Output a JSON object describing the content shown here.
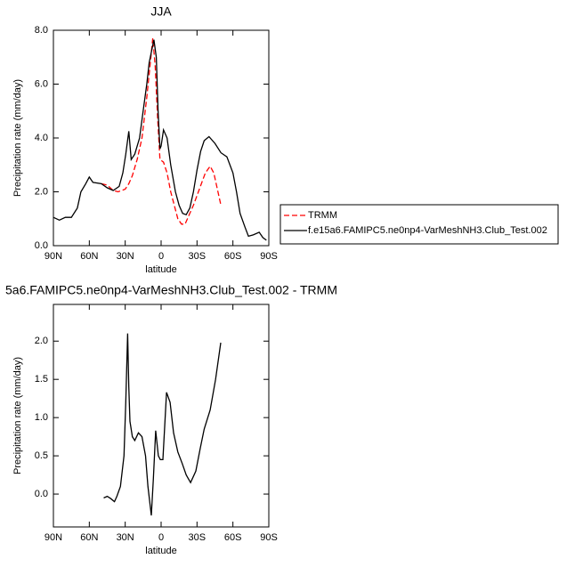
{
  "chart_data": [
    {
      "type": "line",
      "title": "JJA",
      "xlabel": "latitude",
      "ylabel": "Precipitation rate (mm/day)",
      "xlim": [
        90,
        -90
      ],
      "xticks": [
        {
          "value": 90,
          "label": "90N"
        },
        {
          "value": 60,
          "label": "60N"
        },
        {
          "value": 30,
          "label": "30N"
        },
        0,
        {
          "value": -30,
          "label": "30S"
        },
        {
          "value": -60,
          "label": "60S"
        },
        {
          "value": -90,
          "label": "90S"
        }
      ],
      "ylim": [
        0,
        8
      ],
      "yticks": [
        {
          "value": 0,
          "label": "0.0"
        },
        {
          "value": 2,
          "label": "2.0"
        },
        {
          "value": 4,
          "label": "4.0"
        },
        {
          "value": 6,
          "label": "6.0"
        },
        {
          "value": 8,
          "label": "8.0"
        }
      ],
      "legend": "right",
      "series": [
        {
          "name": "TRMM",
          "color": "#ff0000",
          "dash": "dashed",
          "x": [
            50,
            45,
            40,
            36,
            33,
            30,
            27,
            24,
            20,
            16,
            12,
            9,
            7,
            5,
            3,
            1,
            -2,
            -5,
            -8,
            -11,
            -14,
            -17,
            -20,
            -23,
            -27,
            -32,
            -37,
            -41,
            -44,
            -47,
            -50
          ],
          "values": [
            2.3,
            2.25,
            2.05,
            2.0,
            2.05,
            2.1,
            2.3,
            2.6,
            3.2,
            4.0,
            5.5,
            6.8,
            7.7,
            6.7,
            4.8,
            3.2,
            3.1,
            2.7,
            2.0,
            1.5,
            1.0,
            0.8,
            0.8,
            1.1,
            1.5,
            2.1,
            2.7,
            2.95,
            2.7,
            2.1,
            1.5
          ]
        },
        {
          "name": "f.e15a6.FAMIPC5.ne0np4-VarMeshNH3.Club_Test.002",
          "color": "#000000",
          "dash": "solid",
          "x": [
            90,
            85,
            80,
            75,
            70,
            67,
            63,
            60,
            57,
            50,
            45,
            40,
            35,
            32,
            29.5,
            27,
            25,
            22,
            18,
            15,
            12,
            10,
            6,
            4,
            2.5,
            1,
            0,
            -2,
            -5,
            -8,
            -12,
            -15,
            -18,
            -21,
            -24,
            -27,
            -30,
            -33,
            -36,
            -40,
            -45,
            -50,
            -55,
            -60,
            -63,
            -66,
            -70,
            -73,
            -77,
            -82,
            -85,
            -88
          ],
          "values": [
            1.05,
            0.95,
            1.05,
            1.05,
            1.4,
            2.0,
            2.3,
            2.55,
            2.35,
            2.3,
            2.15,
            2.05,
            2.2,
            2.7,
            3.4,
            4.25,
            3.2,
            3.4,
            4.0,
            5.0,
            6.0,
            6.8,
            7.65,
            7.0,
            5.0,
            3.6,
            3.7,
            4.3,
            4.0,
            3.0,
            2.0,
            1.5,
            1.2,
            1.15,
            1.4,
            2.0,
            2.8,
            3.5,
            3.9,
            4.05,
            3.8,
            3.45,
            3.3,
            2.7,
            2.0,
            1.2,
            0.7,
            0.35,
            0.4,
            0.5,
            0.3,
            0.2
          ]
        }
      ]
    },
    {
      "type": "line",
      "title": "5a6.FAMIPC5.ne0np4-VarMeshNH3.Club_Test.002 - TRMM",
      "xlabel": "latitude",
      "ylabel": "Precipitation rate (mm/day)",
      "xlim": [
        90,
        -90
      ],
      "xticks": [
        {
          "value": 90,
          "label": "90N"
        },
        {
          "value": 60,
          "label": "60N"
        },
        {
          "value": 30,
          "label": "30N"
        },
        0,
        {
          "value": -30,
          "label": "30S"
        },
        {
          "value": -60,
          "label": "60S"
        },
        {
          "value": -90,
          "label": "90S"
        }
      ],
      "ylim": [
        -0.43,
        2.48
      ],
      "yticks": [
        {
          "value": 0,
          "label": "0.0"
        },
        0.5,
        {
          "value": 1,
          "label": "1.0"
        },
        1.5,
        {
          "value": 2,
          "label": "2.0"
        }
      ],
      "series": [
        {
          "color": "#000000",
          "dash": "solid",
          "x": [
            48,
            45,
            42,
            39,
            37,
            34,
            31,
            29.5,
            28,
            27,
            26,
            24,
            22,
            19,
            16,
            13,
            11,
            8.2,
            6.5,
            4.5,
            2.3,
            0.7,
            -1.5,
            -4.5,
            -7.5,
            -10.4,
            -14,
            -17.6,
            -21,
            -24.6,
            -29,
            -32.7,
            -36,
            -41,
            -45.5,
            -49.8
          ],
          "values": [
            -0.05,
            -0.03,
            -0.06,
            -0.1,
            -0.03,
            0.1,
            0.5,
            1.2,
            2.1,
            1.4,
            0.95,
            0.75,
            0.7,
            0.8,
            0.75,
            0.5,
            0.1,
            -0.28,
            0.2,
            0.83,
            0.5,
            0.45,
            0.45,
            1.33,
            1.2,
            0.8,
            0.55,
            0.4,
            0.25,
            0.15,
            0.3,
            0.6,
            0.85,
            1.1,
            1.5,
            1.98
          ]
        }
      ]
    }
  ]
}
